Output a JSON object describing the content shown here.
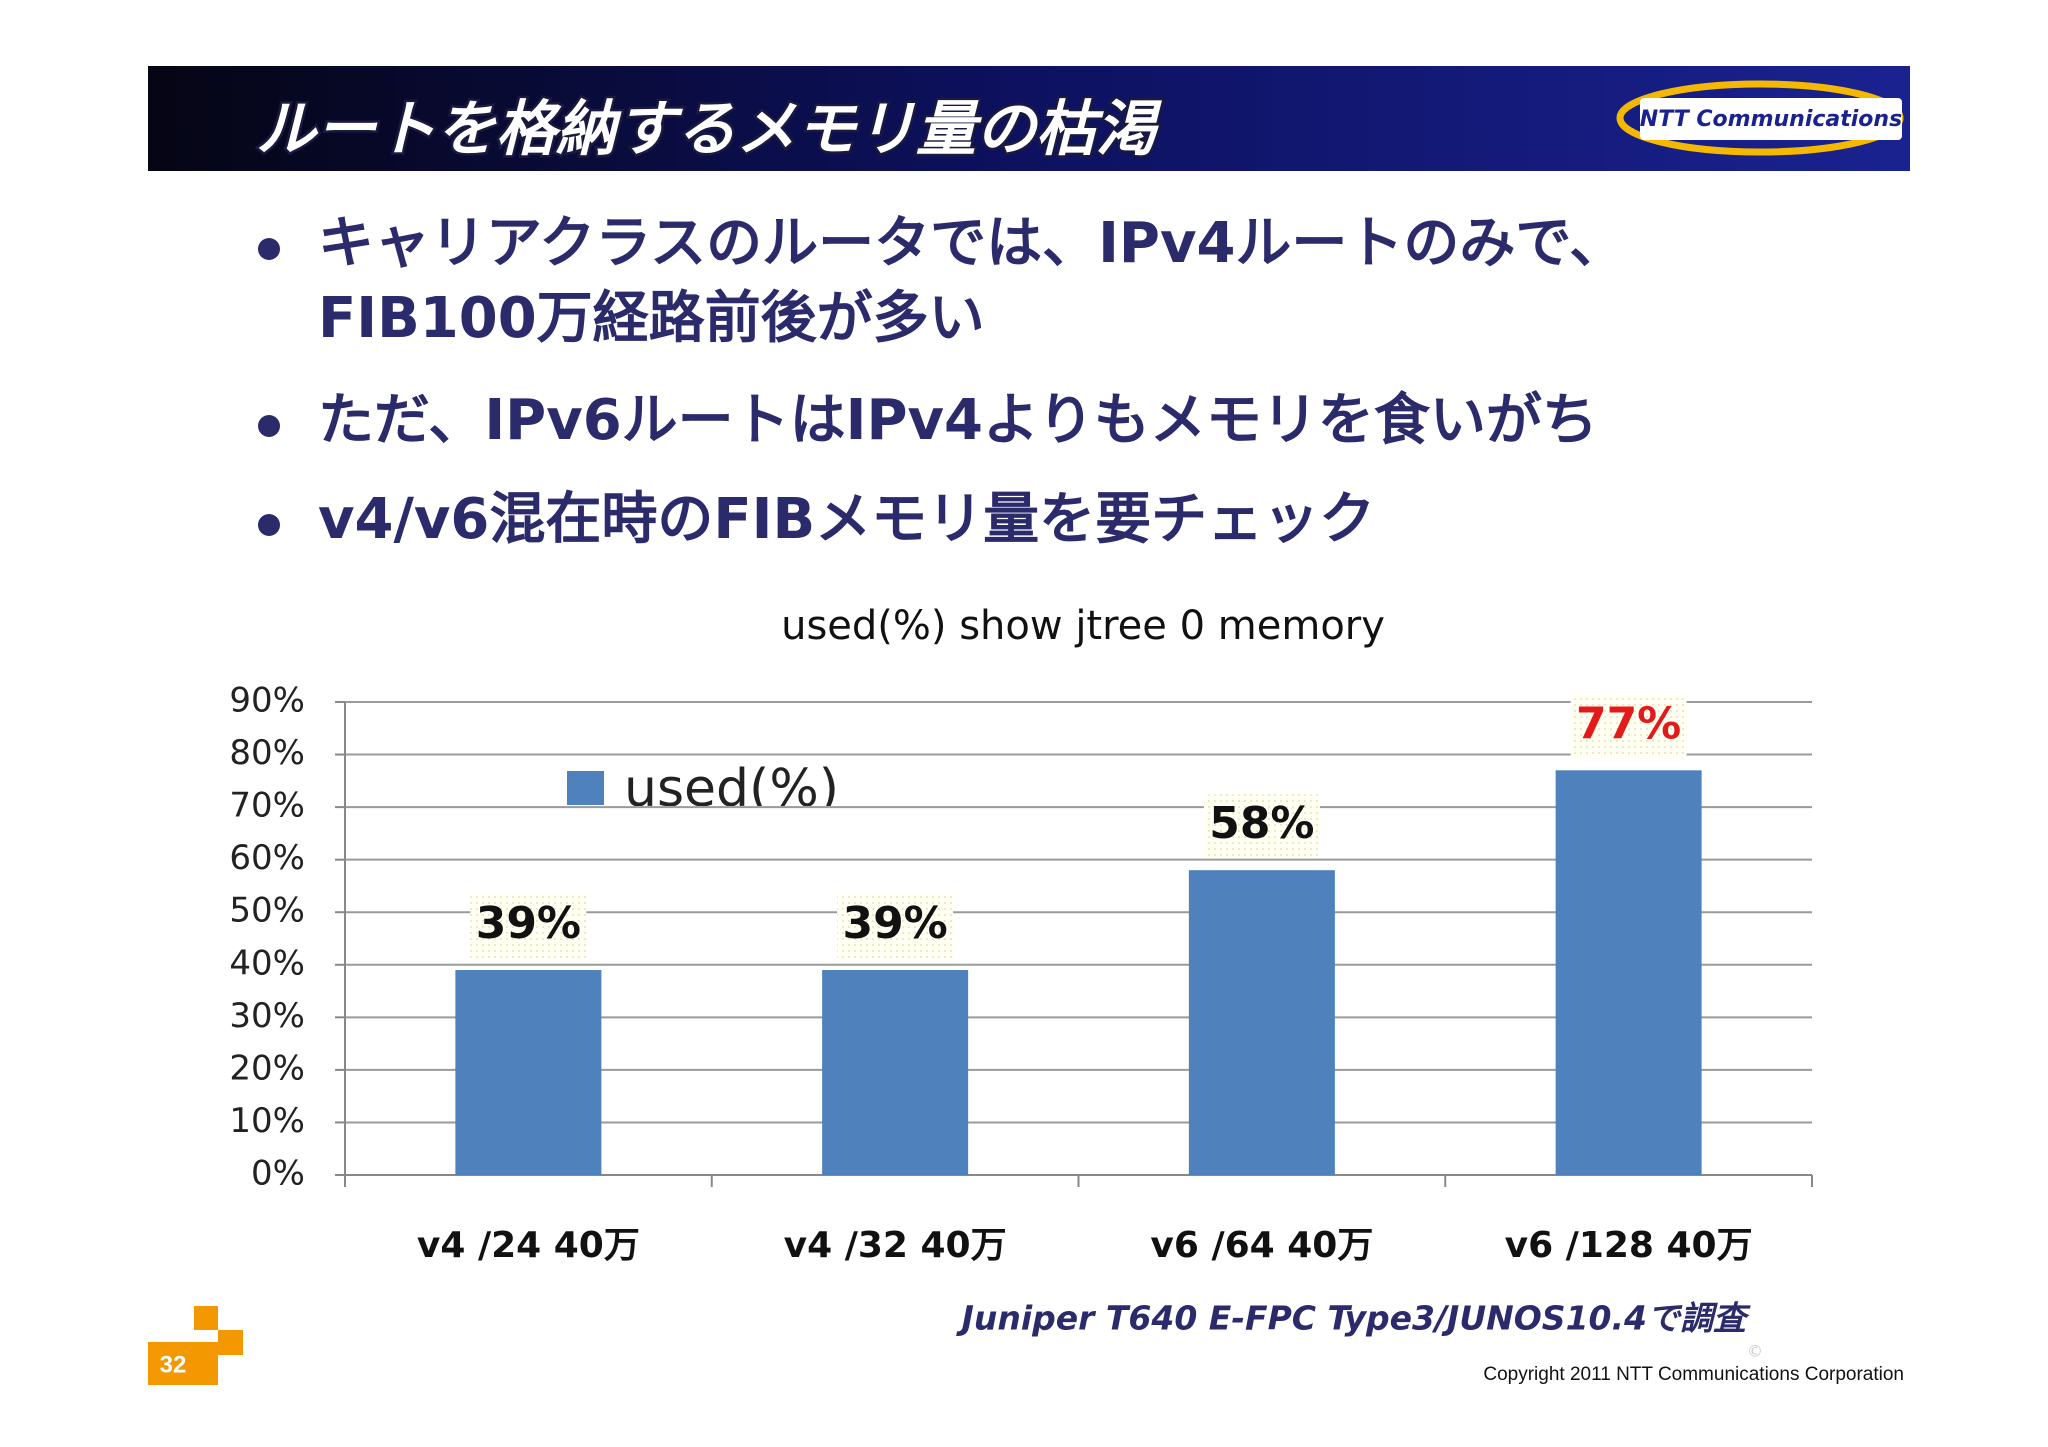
{
  "header": {
    "title": "ルートを格納するメモリ量の枯渇",
    "logo": "NTT Communications"
  },
  "bullets": [
    [
      "キャリアクラスのルータでは、IPv4ルートのみで、",
      "FIB100万経路前後が多い"
    ],
    [
      "ただ、IPv6ルートはIPv4よりもメモリを食いがち"
    ],
    [
      "v4/v6混在時のFIBメモリ量を要チェック"
    ]
  ],
  "chart_data": {
    "type": "bar",
    "title": "used(%) show jtree 0 memory",
    "categories": [
      "v4 /24 40万",
      "v4 /32 40万",
      "v6 /64 40万",
      "v6 /128 40万"
    ],
    "series": [
      {
        "name": "used(%)",
        "color": "#4f81bd",
        "values": [
          39,
          39,
          58,
          77
        ],
        "value_labels": [
          "39%",
          "39%",
          "58%",
          "77%"
        ],
        "label_colors": [
          "#111111",
          "#111111",
          "#111111",
          "#e31a1a"
        ]
      }
    ],
    "ylim": [
      0,
      90
    ],
    "yticks": [
      {
        "value": 0,
        "label": "0%"
      },
      {
        "value": 10,
        "label": "10%"
      },
      {
        "value": 20,
        "label": "20%"
      },
      {
        "value": 30,
        "label": "30%"
      },
      {
        "value": 40,
        "label": "40%"
      },
      {
        "value": 50,
        "label": "50%"
      },
      {
        "value": 60,
        "label": "60%"
      },
      {
        "value": 70,
        "label": "70%"
      },
      {
        "value": 80,
        "label": "80%"
      },
      {
        "value": 90,
        "label": "90%"
      }
    ],
    "grid": true
  },
  "footnote": "Juniper T640 E-FPC Type3/JUNOS10.4で調査",
  "footer": {
    "page": "32",
    "copyright_mark": "©",
    "copyright": "Copyright 2011 NTT Communications Corporation"
  }
}
